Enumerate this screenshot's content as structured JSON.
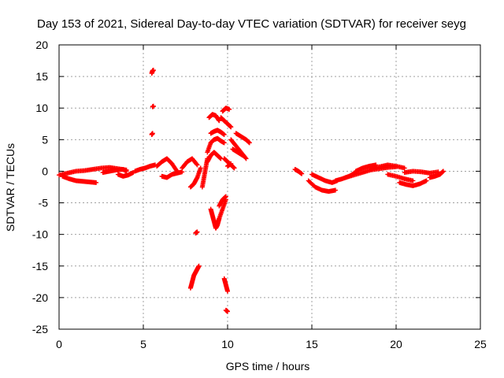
{
  "chart_data": {
    "type": "scatter",
    "title": "Day 153 of 2021, Sidereal Day-to-day VTEC variation (SDTVAR) for receiver seyg",
    "xlabel": "GPS time / hours",
    "ylabel": "SDTVAR / TECUs",
    "xlim": [
      0,
      25
    ],
    "ylim": [
      -25,
      20
    ],
    "xticks": [
      0,
      5,
      10,
      15,
      20,
      25
    ],
    "yticks": [
      -25,
      -20,
      -15,
      -10,
      -5,
      0,
      5,
      10,
      15,
      20
    ],
    "grid": true,
    "marker": "+",
    "color": "#ff0000",
    "segments": [
      {
        "x": [
          0.0,
          0.5,
          1.0,
          1.5,
          2.0,
          2.5,
          3.0,
          3.5,
          4.0
        ],
        "y": [
          -0.6,
          -0.3,
          0.0,
          0.1,
          0.3,
          0.5,
          0.6,
          0.4,
          0.2
        ]
      },
      {
        "x": [
          0.2,
          0.6,
          1.0,
          1.4,
          1.8,
          2.2
        ],
        "y": [
          -0.8,
          -1.2,
          -1.5,
          -1.6,
          -1.7,
          -1.8
        ]
      },
      {
        "x": [
          2.6,
          3.0,
          3.4,
          3.8,
          4.0
        ],
        "y": [
          -0.2,
          0.0,
          0.2,
          0.3,
          0.0
        ]
      },
      {
        "x": [
          3.5,
          3.8,
          4.1,
          4.4
        ],
        "y": [
          -0.5,
          -0.8,
          -0.6,
          -0.2
        ]
      },
      {
        "x": [
          4.5,
          4.8,
          5.1,
          5.4,
          5.7
        ],
        "y": [
          0.0,
          0.3,
          0.5,
          0.8,
          1.0
        ]
      },
      {
        "x": [
          5.5,
          5.55,
          5.6
        ],
        "y": [
          15.5,
          15.9,
          16.0
        ]
      },
      {
        "x": [
          5.55,
          5.6
        ],
        "y": [
          10.2,
          10.3
        ]
      },
      {
        "x": [
          5.5,
          5.55
        ],
        "y": [
          5.8,
          6.0
        ]
      },
      {
        "x": [
          5.8,
          6.1,
          6.4,
          6.7,
          7.0
        ],
        "y": [
          0.8,
          1.5,
          2.0,
          1.2,
          0.0
        ]
      },
      {
        "x": [
          6.1,
          6.4,
          6.7,
          7.0,
          7.3
        ],
        "y": [
          -0.8,
          -1.0,
          -0.5,
          -0.3,
          -0.1
        ]
      },
      {
        "x": [
          7.3,
          7.6,
          7.9,
          8.2
        ],
        "y": [
          0.5,
          1.5,
          2.0,
          1.0
        ]
      },
      {
        "x": [
          7.8,
          8.0,
          8.2,
          8.4
        ],
        "y": [
          -2.5,
          -2.0,
          -1.0,
          0.5
        ]
      },
      {
        "x": [
          8.5,
          8.6,
          8.7,
          8.8
        ],
        "y": [
          -2.5,
          -1.0,
          0.5,
          2.0
        ]
      },
      {
        "x": [
          8.1,
          8.2
        ],
        "y": [
          -9.8,
          -9.6
        ]
      },
      {
        "x": [
          7.8,
          7.9,
          8.0,
          8.1,
          8.2,
          8.3
        ],
        "y": [
          -18.5,
          -17.5,
          -16.5,
          -16.0,
          -15.5,
          -15.0
        ]
      },
      {
        "x": [
          8.8,
          9.0,
          9.2,
          9.4,
          9.6,
          9.8
        ],
        "y": [
          3.0,
          4.5,
          5.0,
          5.2,
          4.8,
          4.5
        ]
      },
      {
        "x": [
          8.9,
          9.1,
          9.3,
          9.5
        ],
        "y": [
          8.5,
          9.0,
          8.8,
          8.0
        ]
      },
      {
        "x": [
          9.0,
          9.2,
          9.4,
          9.6,
          9.8
        ],
        "y": [
          6.0,
          6.3,
          6.5,
          6.2,
          5.8
        ]
      },
      {
        "x": [
          9.7,
          9.9,
          10.1
        ],
        "y": [
          9.5,
          10.0,
          9.8
        ]
      },
      {
        "x": [
          9.6,
          9.8,
          10.0,
          10.2
        ],
        "y": [
          8.5,
          8.0,
          7.5,
          7.0
        ]
      },
      {
        "x": [
          8.8,
          9.0,
          9.2,
          9.4,
          9.6
        ],
        "y": [
          1.5,
          2.5,
          3.0,
          2.5,
          2.0
        ]
      },
      {
        "x": [
          9.0,
          9.1,
          9.2,
          9.3,
          9.4,
          9.5
        ],
        "y": [
          -6.0,
          -7.0,
          -8.0,
          -9.0,
          -8.5,
          -7.5
        ]
      },
      {
        "x": [
          9.3,
          9.5,
          9.7,
          9.9
        ],
        "y": [
          -9.0,
          -7.5,
          -6.0,
          -4.5
        ]
      },
      {
        "x": [
          9.5,
          9.7,
          9.9
        ],
        "y": [
          -5.5,
          -4.5,
          -4.0
        ]
      },
      {
        "x": [
          9.8,
          9.9,
          10.0
        ],
        "y": [
          -17.0,
          -18.0,
          -19.0
        ]
      },
      {
        "x": [
          9.9,
          10.0
        ],
        "y": [
          -22.0,
          -22.2
        ]
      },
      {
        "x": [
          9.8,
          10.0,
          10.2,
          10.4
        ],
        "y": [
          2.0,
          1.5,
          1.0,
          0.5
        ]
      },
      {
        "x": [
          10.0,
          10.2
        ],
        "y": [
          0.8,
          1.2
        ]
      },
      {
        "x": [
          10.2,
          10.5,
          10.8,
          11.1
        ],
        "y": [
          5.0,
          4.0,
          3.0,
          2.0
        ]
      },
      {
        "x": [
          10.5,
          10.8,
          11.1,
          11.3
        ],
        "y": [
          6.0,
          5.5,
          5.0,
          4.5
        ]
      },
      {
        "x": [
          10.3,
          10.6,
          10.9
        ],
        "y": [
          3.5,
          3.0,
          2.5
        ]
      },
      {
        "x": [
          14.0,
          14.2,
          14.4
        ],
        "y": [
          0.3,
          0.0,
          -0.4
        ]
      },
      {
        "x": [
          14.8,
          15.2,
          15.6,
          16.0,
          16.4
        ],
        "y": [
          -1.5,
          -2.5,
          -3.0,
          -3.2,
          -3.0
        ]
      },
      {
        "x": [
          15.0,
          15.4,
          15.8,
          16.2,
          16.5
        ],
        "y": [
          -0.5,
          -1.0,
          -1.5,
          -1.8,
          -1.5
        ]
      },
      {
        "x": [
          16.4,
          16.8,
          17.2,
          17.6
        ],
        "y": [
          -1.5,
          -1.2,
          -0.8,
          -0.2
        ]
      },
      {
        "x": [
          17.0,
          17.5,
          18.0,
          18.5,
          19.0,
          19.5,
          20.0
        ],
        "y": [
          -1.0,
          -0.6,
          -0.2,
          0.2,
          0.4,
          0.6,
          0.7
        ]
      },
      {
        "x": [
          17.6,
          18.0,
          18.4,
          18.8
        ],
        "y": [
          0.0,
          0.5,
          0.8,
          1.0
        ]
      },
      {
        "x": [
          18.5,
          19.0,
          19.5,
          20.0,
          20.5
        ],
        "y": [
          0.3,
          0.7,
          1.0,
          0.8,
          0.5
        ]
      },
      {
        "x": [
          19.5,
          20.0,
          20.5,
          21.0
        ],
        "y": [
          -0.5,
          -0.8,
          -1.2,
          -1.5
        ]
      },
      {
        "x": [
          20.2,
          20.6,
          21.0,
          21.4,
          21.8
        ],
        "y": [
          -1.8,
          -2.1,
          -2.3,
          -2.0,
          -1.5
        ]
      },
      {
        "x": [
          20.5,
          21.0,
          21.5,
          22.0,
          22.5
        ],
        "y": [
          -0.2,
          0.0,
          -0.1,
          -0.3,
          -0.1
        ]
      },
      {
        "x": [
          22.0,
          22.3,
          22.6,
          22.8
        ],
        "y": [
          -1.0,
          -0.8,
          -0.5,
          0.0
        ]
      }
    ]
  }
}
